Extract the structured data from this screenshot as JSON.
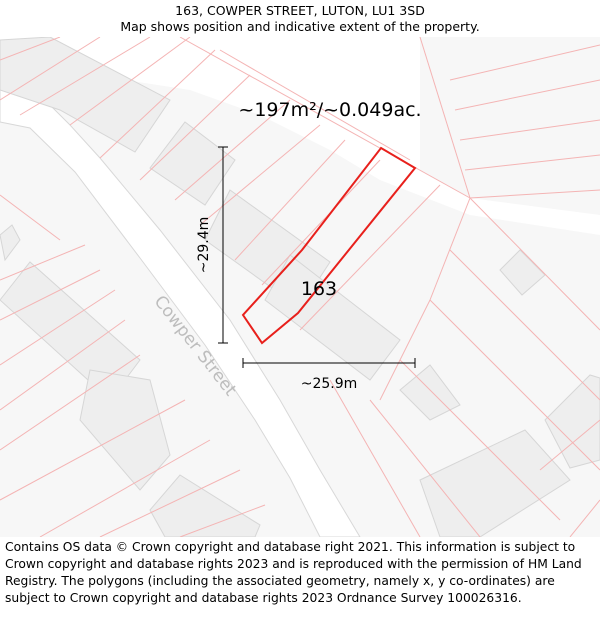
{
  "header": {
    "address": "163, COWPER STREET, LUTON, LU1 3SD",
    "subtitle": "Map shows position and indicative extent of the property."
  },
  "map": {
    "area_label": "~197m²/~0.049ac.",
    "plot_number": "163",
    "street_name": "Cowper Street",
    "height_measure": "~29.4m",
    "width_measure": "~25.9m",
    "colors": {
      "plot_outline": "#e8201c",
      "parcel_lines": "#f4b4b4",
      "building_fill": "#f2f2f2",
      "road_fill": "#ffffff",
      "background": "#f7f7f7"
    }
  },
  "footer": {
    "copyright": "Contains OS data © Crown copyright and database right 2021. This information is subject to Crown copyright and database rights 2023 and is reproduced with the permission of HM Land Registry. The polygons (including the associated geometry, namely x, y co-ordinates) are subject to Crown copyright and database rights 2023 Ordnance Survey 100026316."
  }
}
